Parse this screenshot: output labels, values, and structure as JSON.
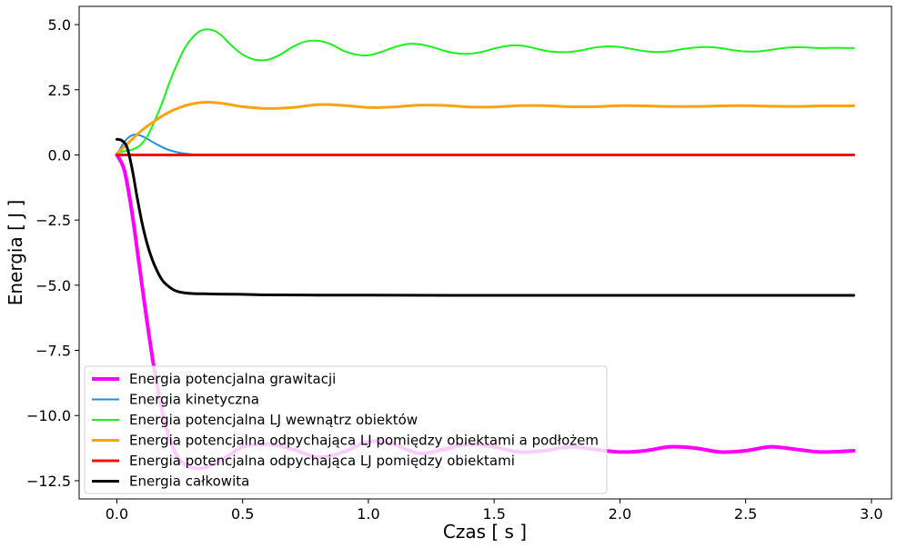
{
  "chart_data": {
    "type": "line",
    "xlabel": "Czas [ s ]",
    "ylabel": "Energia [ J ]",
    "xlim": [
      -0.15,
      3.08
    ],
    "ylim": [
      -13.2,
      5.7
    ],
    "xticks": [
      0.0,
      0.5,
      1.0,
      1.5,
      2.0,
      2.5,
      3.0
    ],
    "xtick_labels": [
      "0.0",
      "0.5",
      "1.0",
      "1.5",
      "2.0",
      "2.5",
      "3.0"
    ],
    "yticks": [
      5.0,
      2.5,
      0.0,
      -2.5,
      -5.0,
      -7.5,
      -10.0,
      -12.5
    ],
    "ytick_labels": [
      "5.0",
      "2.5",
      "0.0",
      "−2.5",
      "−5.0",
      "−7.5",
      "−10.0",
      "−12.5"
    ],
    "grid": false,
    "legend_position": "bottom-left",
    "series": [
      {
        "name": "Energia potencjalna grawitacji",
        "color": "#ff00ff",
        "x": [
          0.0,
          0.03,
          0.06,
          0.09,
          0.12,
          0.15,
          0.18,
          0.21,
          0.25,
          0.3,
          0.35,
          0.4,
          0.45,
          0.5,
          0.6,
          0.7,
          0.8,
          0.9,
          1.0,
          1.1,
          1.2,
          1.3,
          1.4,
          1.5,
          1.6,
          1.7,
          1.8,
          1.9,
          2.0,
          2.1,
          2.2,
          2.3,
          2.4,
          2.5,
          2.6,
          2.7,
          2.8,
          2.93
        ],
        "y": [
          0.0,
          -0.6,
          -2.2,
          -4.3,
          -6.4,
          -8.3,
          -9.8,
          -10.9,
          -11.7,
          -12.0,
          -12.0,
          -11.8,
          -11.5,
          -11.2,
          -11.1,
          -11.3,
          -11.6,
          -11.4,
          -11.0,
          -11.1,
          -11.45,
          -11.3,
          -11.1,
          -11.2,
          -11.4,
          -11.35,
          -11.2,
          -11.3,
          -11.4,
          -11.35,
          -11.2,
          -11.25,
          -11.4,
          -11.35,
          -11.2,
          -11.3,
          -11.4,
          -11.35
        ]
      },
      {
        "name": "Energia kinetyczna",
        "color": "#1f8fdf",
        "x": [
          0.0,
          0.02,
          0.04,
          0.06,
          0.08,
          0.1,
          0.12,
          0.15,
          0.18,
          0.21,
          0.25,
          0.3,
          0.35,
          0.4,
          0.5,
          0.6,
          1.0,
          2.0,
          2.93
        ],
        "y": [
          0.0,
          0.35,
          0.62,
          0.75,
          0.78,
          0.72,
          0.62,
          0.45,
          0.3,
          0.18,
          0.08,
          0.02,
          0.0,
          0.0,
          0.0,
          0.0,
          0.0,
          0.0,
          0.0
        ]
      },
      {
        "name": "Energia potencjalna LJ wewnątrz obiektów",
        "color": "#1af21a",
        "x": [
          0.0,
          0.03,
          0.06,
          0.09,
          0.12,
          0.15,
          0.18,
          0.21,
          0.24,
          0.27,
          0.3,
          0.33,
          0.36,
          0.39,
          0.42,
          0.45,
          0.5,
          0.55,
          0.6,
          0.65,
          0.7,
          0.75,
          0.8,
          0.85,
          0.9,
          0.95,
          1.0,
          1.05,
          1.1,
          1.15,
          1.2,
          1.25,
          1.3,
          1.35,
          1.4,
          1.45,
          1.5,
          1.55,
          1.6,
          1.65,
          1.7,
          1.75,
          1.8,
          1.85,
          1.9,
          1.95,
          2.0,
          2.05,
          2.1,
          2.15,
          2.2,
          2.25,
          2.3,
          2.35,
          2.4,
          2.45,
          2.5,
          2.55,
          2.6,
          2.65,
          2.7,
          2.75,
          2.8,
          2.85,
          2.93
        ],
        "y": [
          0.05,
          0.15,
          0.2,
          0.35,
          0.7,
          1.3,
          2.0,
          2.8,
          3.5,
          4.1,
          4.5,
          4.75,
          4.82,
          4.75,
          4.55,
          4.25,
          3.85,
          3.65,
          3.65,
          3.85,
          4.15,
          4.35,
          4.38,
          4.25,
          4.0,
          3.85,
          3.82,
          3.95,
          4.12,
          4.25,
          4.25,
          4.15,
          4.0,
          3.9,
          3.88,
          3.95,
          4.08,
          4.18,
          4.2,
          4.12,
          4.0,
          3.95,
          3.95,
          4.02,
          4.12,
          4.16,
          4.14,
          4.06,
          3.98,
          3.95,
          3.98,
          4.06,
          4.12,
          4.14,
          4.1,
          4.02,
          3.97,
          3.97,
          4.03,
          4.1,
          4.13,
          4.12,
          4.1,
          4.11,
          4.1
        ]
      },
      {
        "name": "Energia potencjalna odpychająca LJ pomiędzy obiektami a podłożem",
        "color": "#f8a30f",
        "x": [
          0.0,
          0.05,
          0.1,
          0.15,
          0.2,
          0.25,
          0.3,
          0.35,
          0.4,
          0.45,
          0.5,
          0.6,
          0.7,
          0.8,
          0.9,
          1.0,
          1.1,
          1.2,
          1.3,
          1.4,
          1.5,
          1.6,
          1.7,
          1.8,
          1.9,
          2.0,
          2.1,
          2.2,
          2.3,
          2.4,
          2.5,
          2.6,
          2.7,
          2.8,
          2.93
        ],
        "y": [
          0.05,
          0.5,
          0.95,
          1.3,
          1.6,
          1.82,
          1.96,
          2.02,
          2.0,
          1.93,
          1.85,
          1.78,
          1.82,
          1.93,
          1.9,
          1.82,
          1.84,
          1.91,
          1.9,
          1.84,
          1.84,
          1.89,
          1.89,
          1.85,
          1.85,
          1.89,
          1.88,
          1.86,
          1.86,
          1.88,
          1.89,
          1.87,
          1.86,
          1.88,
          1.88
        ]
      },
      {
        "name": "Energia potencjalna odpychająca LJ pomiędzy obiektami",
        "color": "#f50f0f",
        "x": [
          0.0,
          0.5,
          1.0,
          1.5,
          2.0,
          2.5,
          2.93
        ],
        "y": [
          0.0,
          0.0,
          0.0,
          0.0,
          0.0,
          0.0,
          0.0
        ]
      },
      {
        "name": "Energia całkowita",
        "color": "#000000",
        "x": [
          0.0,
          0.02,
          0.04,
          0.06,
          0.08,
          0.1,
          0.12,
          0.14,
          0.16,
          0.18,
          0.2,
          0.23,
          0.26,
          0.3,
          0.35,
          0.4,
          0.5,
          0.6,
          0.8,
          1.0,
          1.5,
          2.0,
          2.5,
          2.93
        ],
        "y": [
          0.6,
          0.55,
          0.3,
          -0.5,
          -1.6,
          -2.6,
          -3.4,
          -4.0,
          -4.45,
          -4.8,
          -5.0,
          -5.2,
          -5.28,
          -5.32,
          -5.33,
          -5.34,
          -5.35,
          -5.37,
          -5.38,
          -5.38,
          -5.39,
          -5.39,
          -5.39,
          -5.39
        ]
      }
    ]
  }
}
